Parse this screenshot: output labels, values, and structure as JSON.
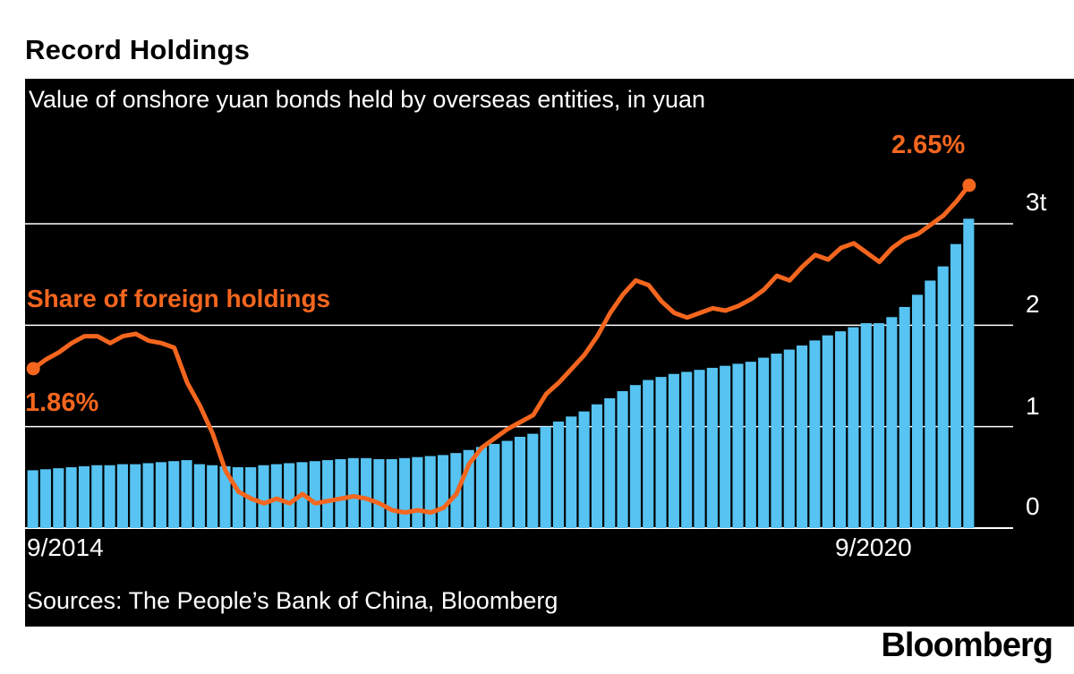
{
  "header": {
    "title": "Record Holdings"
  },
  "chart_data": {
    "type": "combo",
    "subtitle": "Value of onshore yuan bonds held by overseas entities, in yuan",
    "line_series_label": "Share of foreign holdings",
    "line_start_label": "1.86%",
    "line_end_label": "2.65%",
    "x_tick_labels": [
      "9/2014",
      "9/2020"
    ],
    "y_tick_labels": [
      "3t",
      "2",
      "1",
      "0"
    ],
    "y_ticks": [
      3,
      2,
      1,
      0
    ],
    "ylim": [
      0,
      3.3
    ],
    "line_ylim": [
      1.2,
      2.65
    ],
    "background": "#000000",
    "bar_color": "#56c3f2",
    "line_color": "#f4661e",
    "grid_color": "#ffffff",
    "x": [
      "2014-09",
      "2014-10",
      "2014-11",
      "2014-12",
      "2015-01",
      "2015-02",
      "2015-03",
      "2015-04",
      "2015-05",
      "2015-06",
      "2015-07",
      "2015-08",
      "2015-09",
      "2015-10",
      "2015-11",
      "2015-12",
      "2016-01",
      "2016-02",
      "2016-03",
      "2016-04",
      "2016-05",
      "2016-06",
      "2016-07",
      "2016-08",
      "2016-09",
      "2016-10",
      "2016-11",
      "2016-12",
      "2017-01",
      "2017-02",
      "2017-03",
      "2017-04",
      "2017-05",
      "2017-06",
      "2017-07",
      "2017-08",
      "2017-09",
      "2017-10",
      "2017-11",
      "2017-12",
      "2018-01",
      "2018-02",
      "2018-03",
      "2018-04",
      "2018-05",
      "2018-06",
      "2018-07",
      "2018-08",
      "2018-09",
      "2018-10",
      "2018-11",
      "2018-12",
      "2019-01",
      "2019-02",
      "2019-03",
      "2019-04",
      "2019-05",
      "2019-06",
      "2019-07",
      "2019-08",
      "2019-09",
      "2019-10",
      "2019-11",
      "2019-12",
      "2020-01",
      "2020-02",
      "2020-03",
      "2020-04",
      "2020-05",
      "2020-06",
      "2020-07",
      "2020-08",
      "2020-09",
      "2020-10"
    ],
    "series": [
      {
        "name": "Value of onshore yuan bonds held by overseas entities",
        "type": "bar",
        "unit": "trillion yuan",
        "values": [
          0.57,
          0.58,
          0.59,
          0.6,
          0.61,
          0.62,
          0.62,
          0.63,
          0.63,
          0.64,
          0.65,
          0.66,
          0.67,
          0.63,
          0.62,
          0.61,
          0.6,
          0.6,
          0.62,
          0.63,
          0.64,
          0.65,
          0.66,
          0.67,
          0.68,
          0.69,
          0.69,
          0.68,
          0.68,
          0.69,
          0.7,
          0.71,
          0.72,
          0.74,
          0.77,
          0.8,
          0.83,
          0.86,
          0.9,
          0.93,
          1.0,
          1.05,
          1.1,
          1.15,
          1.22,
          1.28,
          1.35,
          1.41,
          1.46,
          1.49,
          1.52,
          1.54,
          1.56,
          1.58,
          1.6,
          1.62,
          1.64,
          1.68,
          1.72,
          1.76,
          1.8,
          1.85,
          1.9,
          1.94,
          1.98,
          2.02,
          2.02,
          2.08,
          2.18,
          2.3,
          2.44,
          2.58,
          2.8,
          3.05
        ]
      },
      {
        "name": "Share of foreign holdings",
        "type": "line",
        "unit": "percent",
        "values": [
          1.86,
          1.9,
          1.93,
          1.97,
          2.0,
          2.0,
          1.97,
          2.0,
          2.01,
          1.98,
          1.97,
          1.95,
          1.8,
          1.7,
          1.58,
          1.42,
          1.33,
          1.3,
          1.28,
          1.3,
          1.28,
          1.32,
          1.28,
          1.29,
          1.3,
          1.31,
          1.3,
          1.28,
          1.25,
          1.24,
          1.25,
          1.24,
          1.26,
          1.32,
          1.45,
          1.52,
          1.56,
          1.6,
          1.63,
          1.66,
          1.75,
          1.8,
          1.86,
          1.92,
          2.0,
          2.1,
          2.18,
          2.24,
          2.22,
          2.15,
          2.1,
          2.08,
          2.1,
          2.12,
          2.11,
          2.13,
          2.16,
          2.2,
          2.26,
          2.24,
          2.3,
          2.35,
          2.33,
          2.38,
          2.4,
          2.36,
          2.32,
          2.38,
          2.42,
          2.44,
          2.48,
          2.52,
          2.58,
          2.65
        ]
      }
    ]
  },
  "footer": {
    "sources": "Sources: The People’s Bank of China, Bloomberg",
    "brand": "Bloomberg"
  }
}
